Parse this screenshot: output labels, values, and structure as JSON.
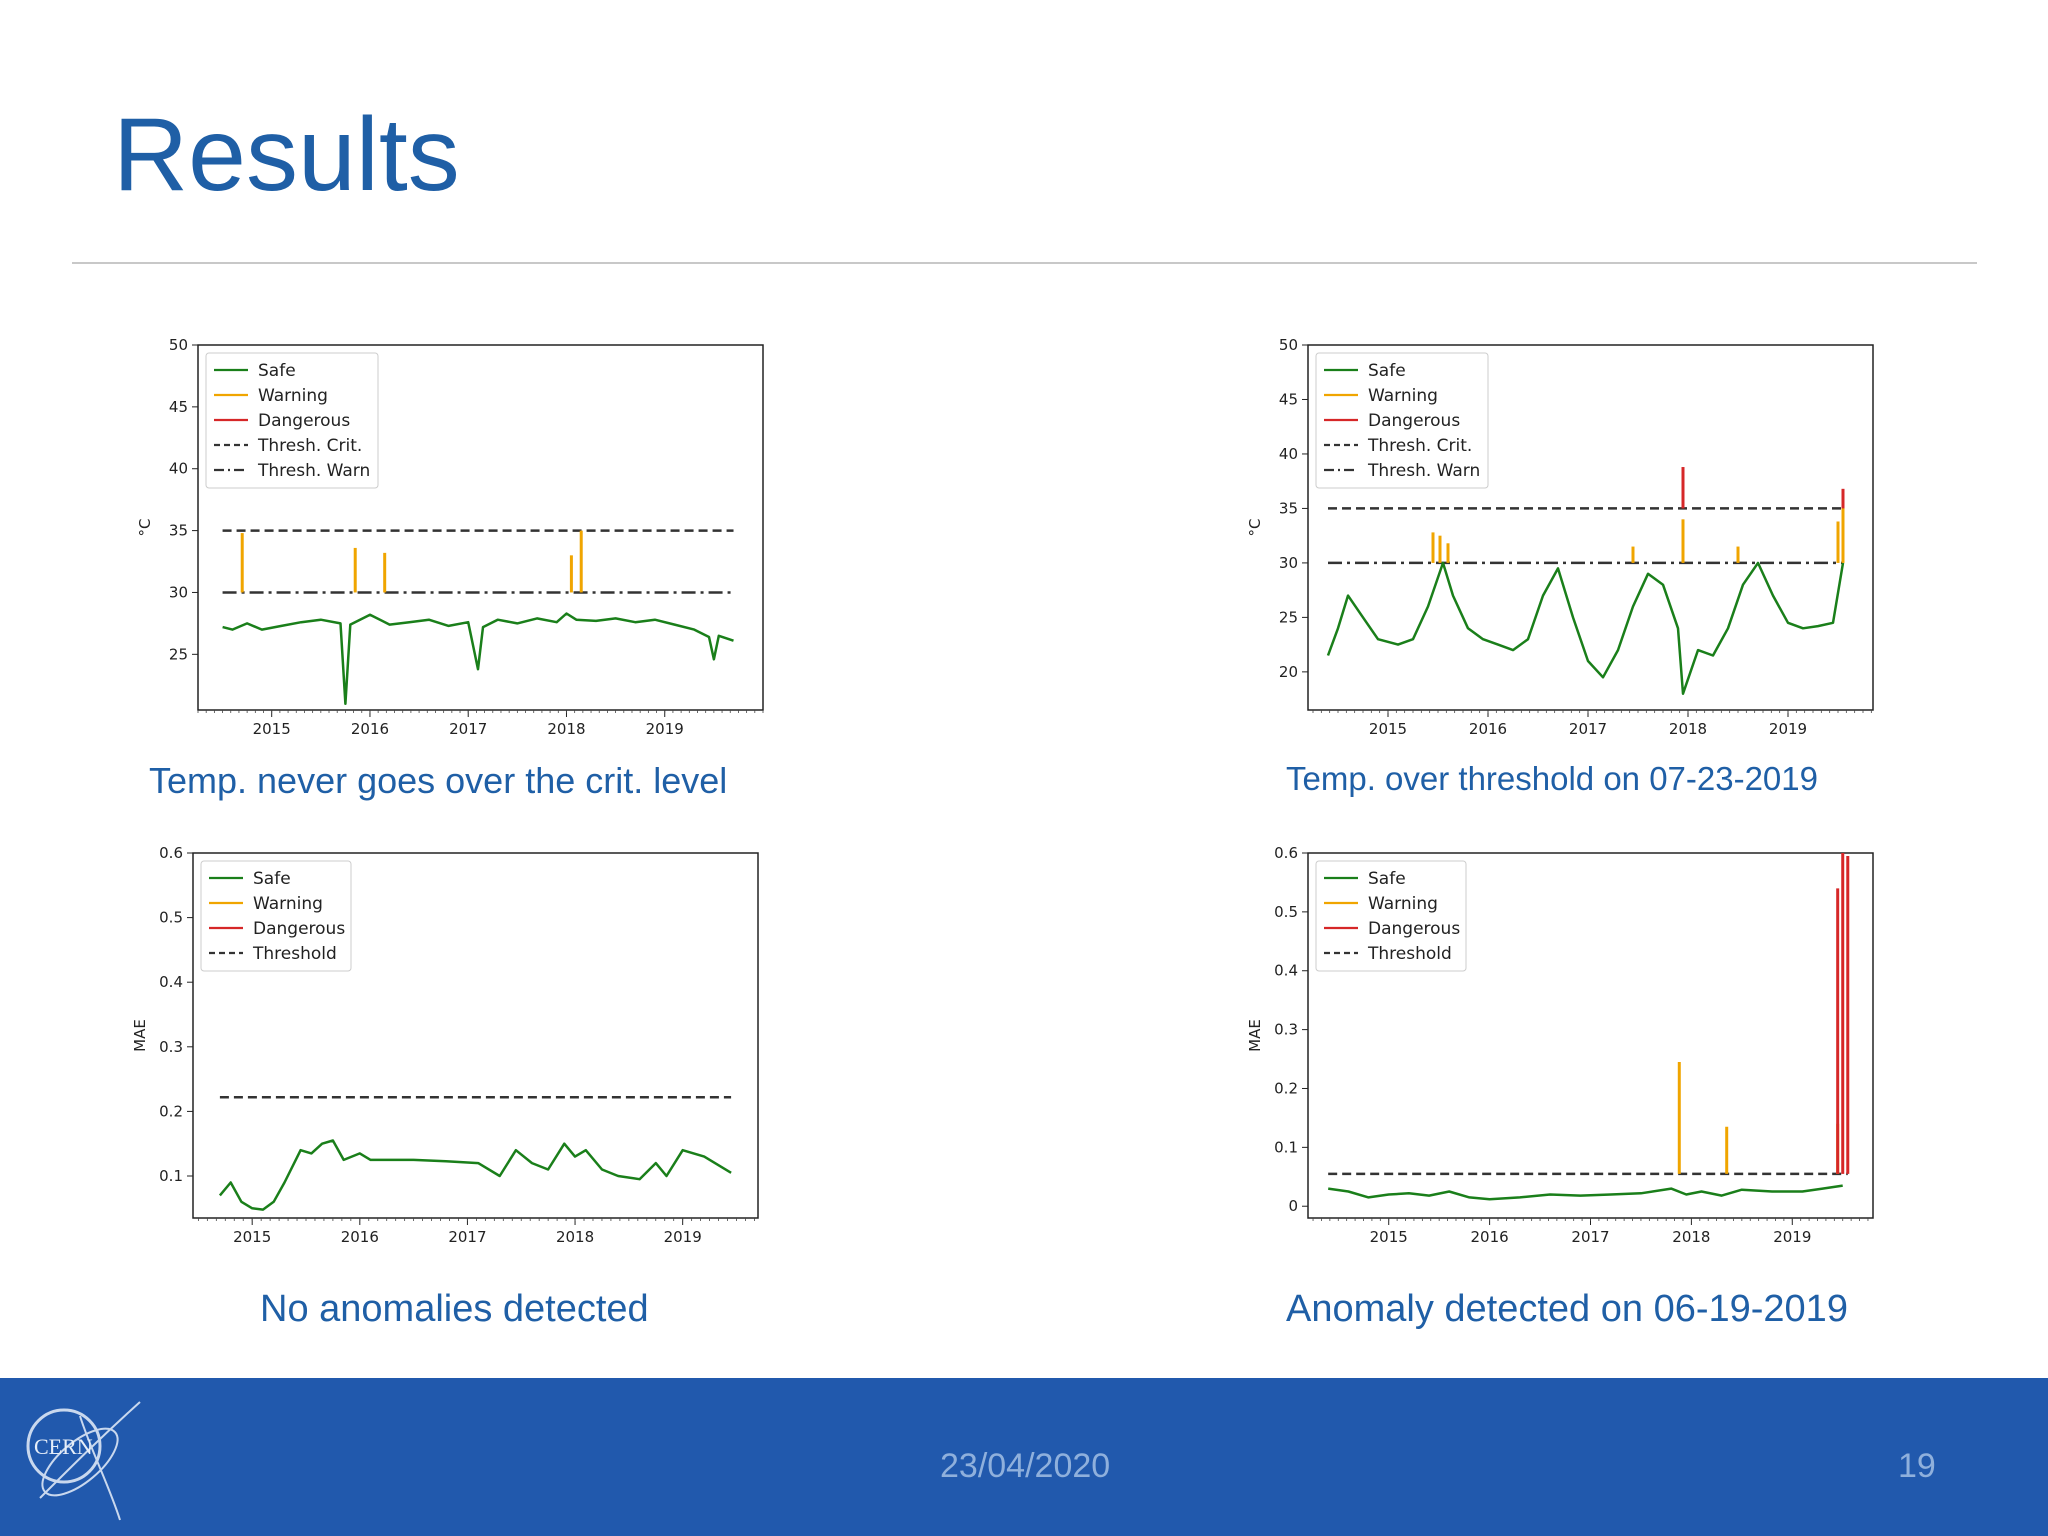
{
  "slide": {
    "title": "Results",
    "footer_date": "23/04/2020",
    "page_number": "19",
    "logo_text": "CERN"
  },
  "captions": [
    "Temp. never goes over the crit. level",
    "Temp. over threshold on 07-23-2019",
    "No anomalies detected",
    "Anomaly detected on 06-19-2019"
  ],
  "colors": {
    "title": "#1f5fa6",
    "footer_bg": "#2159ad",
    "safe": "#1a7f1a",
    "warning": "#f0a500",
    "dangerous": "#d62728",
    "threshold": "#333333"
  },
  "chart_data": [
    {
      "type": "line",
      "ylabel": "°C",
      "xlabel": "",
      "xlim": [
        2014.25,
        2020.0
      ],
      "ylim": [
        20.5,
        50
      ],
      "yticks": [
        25,
        30,
        35,
        40,
        45,
        50
      ],
      "xticks": [
        2015,
        2016,
        2017,
        2018,
        2019
      ],
      "legend": [
        "Safe",
        "Warning",
        "Dangerous",
        "Thresh. Crit.",
        "Thresh. Warn"
      ],
      "legend_position": "top-left",
      "thresholds": [
        {
          "name": "Thresh. Crit.",
          "value": 35,
          "style": "dashed",
          "x": [
            2014.5,
            2019.7
          ]
        },
        {
          "name": "Thresh. Warn",
          "value": 30,
          "style": "dashdot",
          "x": [
            2014.5,
            2019.7
          ]
        }
      ],
      "series": [
        {
          "name": "Safe",
          "x": [
            2014.5,
            2014.6,
            2014.75,
            2014.9,
            2015.1,
            2015.3,
            2015.5,
            2015.7,
            2015.75,
            2015.8,
            2016.0,
            2016.2,
            2016.4,
            2016.6,
            2016.8,
            2017.0,
            2017.1,
            2017.15,
            2017.3,
            2017.5,
            2017.7,
            2017.9,
            2018.0,
            2018.1,
            2018.3,
            2018.5,
            2018.7,
            2018.9,
            2019.1,
            2019.3,
            2019.45,
            2019.5,
            2019.55,
            2019.7
          ],
          "y": [
            27.2,
            27.0,
            27.5,
            27.0,
            27.3,
            27.6,
            27.8,
            27.5,
            21.0,
            27.4,
            28.2,
            27.4,
            27.6,
            27.8,
            27.3,
            27.6,
            23.8,
            27.2,
            27.8,
            27.5,
            27.9,
            27.6,
            28.3,
            27.8,
            27.7,
            27.9,
            27.6,
            27.8,
            27.4,
            27.0,
            26.4,
            24.6,
            26.5,
            26.1
          ]
        },
        {
          "name": "Warning",
          "spikes": [
            [
              2014.7,
              34.8
            ],
            [
              2015.85,
              33.6
            ],
            [
              2016.15,
              33.2
            ],
            [
              2018.05,
              33.0
            ],
            [
              2018.15,
              35.0
            ]
          ]
        }
      ]
    },
    {
      "type": "line",
      "ylabel": "°C",
      "xlabel": "",
      "xlim": [
        2014.2,
        2019.85
      ],
      "ylim": [
        16.5,
        50
      ],
      "yticks": [
        20,
        25,
        30,
        35,
        40,
        45,
        50
      ],
      "xticks": [
        2015,
        2016,
        2017,
        2018,
        2019
      ],
      "legend": [
        "Safe",
        "Warning",
        "Dangerous",
        "Thresh. Crit.",
        "Thresh. Warn"
      ],
      "legend_position": "top-left",
      "thresholds": [
        {
          "name": "Thresh. Crit.",
          "value": 35,
          "style": "dashed",
          "x": [
            2014.4,
            2019.55
          ]
        },
        {
          "name": "Thresh. Warn",
          "value": 30,
          "style": "dashdot",
          "x": [
            2014.4,
            2019.55
          ]
        }
      ],
      "series": [
        {
          "name": "Safe",
          "x": [
            2014.4,
            2014.5,
            2014.6,
            2014.75,
            2014.9,
            2015.1,
            2015.25,
            2015.4,
            2015.55,
            2015.65,
            2015.8,
            2015.95,
            2016.1,
            2016.25,
            2016.4,
            2016.55,
            2016.7,
            2016.85,
            2017.0,
            2017.15,
            2017.3,
            2017.45,
            2017.6,
            2017.75,
            2017.9,
            2017.95,
            2018.1,
            2018.25,
            2018.4,
            2018.55,
            2018.7,
            2018.85,
            2019.0,
            2019.15,
            2019.3,
            2019.45,
            2019.55
          ],
          "y": [
            21.5,
            24.0,
            27.0,
            25.0,
            23.0,
            22.5,
            23.0,
            26.0,
            30.0,
            27.0,
            24.0,
            23.0,
            22.5,
            22.0,
            23.0,
            27.0,
            29.5,
            25.0,
            21.0,
            19.5,
            22.0,
            26.0,
            29.0,
            28.0,
            24.0,
            18.0,
            22.0,
            21.5,
            24.0,
            28.0,
            30.0,
            27.0,
            24.5,
            24.0,
            24.2,
            24.5,
            30.0
          ]
        },
        {
          "name": "Warning",
          "spikes": [
            [
              2015.45,
              32.8
            ],
            [
              2015.52,
              32.5
            ],
            [
              2015.6,
              31.8
            ],
            [
              2017.45,
              31.5
            ],
            [
              2017.95,
              34.0
            ],
            [
              2018.5,
              31.5
            ],
            [
              2019.5,
              33.8
            ],
            [
              2019.55,
              35.2
            ]
          ]
        },
        {
          "name": "Dangerous",
          "spikes": [
            [
              2017.95,
              38.8
            ],
            [
              2019.55,
              36.8
            ]
          ]
        }
      ]
    },
    {
      "type": "line",
      "ylabel": "MAE",
      "xlabel": "",
      "xlim": [
        2014.45,
        2019.7
      ],
      "ylim": [
        0.035,
        0.6
      ],
      "yticks": [
        0.1,
        0.2,
        0.3,
        0.4,
        0.5,
        0.6
      ],
      "xticks": [
        2015,
        2016,
        2017,
        2018,
        2019
      ],
      "legend": [
        "Safe",
        "Warning",
        "Dangerous",
        "Threshold"
      ],
      "legend_position": "top-left",
      "thresholds": [
        {
          "name": "Threshold",
          "value": 0.222,
          "style": "dashed",
          "x": [
            2014.7,
            2019.45
          ]
        }
      ],
      "series": [
        {
          "name": "Safe",
          "x": [
            2014.7,
            2014.8,
            2014.9,
            2015.0,
            2015.1,
            2015.2,
            2015.3,
            2015.45,
            2015.55,
            2015.65,
            2015.75,
            2015.85,
            2016.0,
            2016.1,
            2016.25,
            2016.5,
            2016.8,
            2017.1,
            2017.3,
            2017.45,
            2017.6,
            2017.75,
            2017.9,
            2018.0,
            2018.1,
            2018.25,
            2018.4,
            2018.6,
            2018.75,
            2018.85,
            2019.0,
            2019.2,
            2019.45
          ],
          "y": [
            0.07,
            0.09,
            0.06,
            0.05,
            0.048,
            0.06,
            0.09,
            0.14,
            0.135,
            0.15,
            0.155,
            0.125,
            0.135,
            0.125,
            0.125,
            0.125,
            0.123,
            0.12,
            0.1,
            0.14,
            0.12,
            0.11,
            0.15,
            0.13,
            0.14,
            0.11,
            0.1,
            0.095,
            0.12,
            0.1,
            0.14,
            0.13,
            0.105
          ]
        }
      ]
    },
    {
      "type": "line",
      "ylabel": "MAE",
      "xlabel": "",
      "xlim": [
        2014.2,
        2019.8
      ],
      "ylim": [
        -0.02,
        0.6
      ],
      "yticks": [
        0.0,
        0.1,
        0.2,
        0.3,
        0.4,
        0.5,
        0.6
      ],
      "xticks": [
        2015,
        2016,
        2017,
        2018,
        2019
      ],
      "legend": [
        "Safe",
        "Warning",
        "Dangerous",
        "Threshold"
      ],
      "legend_position": "top-left",
      "thresholds": [
        {
          "name": "Threshold",
          "value": 0.055,
          "style": "dashed",
          "x": [
            2014.4,
            2019.55
          ]
        }
      ],
      "series": [
        {
          "name": "Safe",
          "x": [
            2014.4,
            2014.6,
            2014.8,
            2015.0,
            2015.2,
            2015.4,
            2015.6,
            2015.8,
            2016.0,
            2016.3,
            2016.6,
            2016.9,
            2017.2,
            2017.5,
            2017.8,
            2017.95,
            2018.1,
            2018.3,
            2018.5,
            2018.8,
            2019.1,
            2019.3,
            2019.5
          ],
          "y": [
            0.03,
            0.025,
            0.015,
            0.02,
            0.022,
            0.018,
            0.025,
            0.015,
            0.012,
            0.015,
            0.02,
            0.018,
            0.02,
            0.022,
            0.03,
            0.02,
            0.025,
            0.018,
            0.028,
            0.025,
            0.025,
            0.03,
            0.035
          ]
        },
        {
          "name": "Warning",
          "spikes": [
            [
              2017.88,
              0.245
            ],
            [
              2018.35,
              0.135
            ],
            [
              2019.45,
              0.14
            ]
          ]
        },
        {
          "name": "Dangerous",
          "spikes": [
            [
              2019.45,
              0.54
            ],
            [
              2019.5,
              0.6
            ],
            [
              2019.55,
              0.595
            ]
          ]
        }
      ]
    }
  ]
}
